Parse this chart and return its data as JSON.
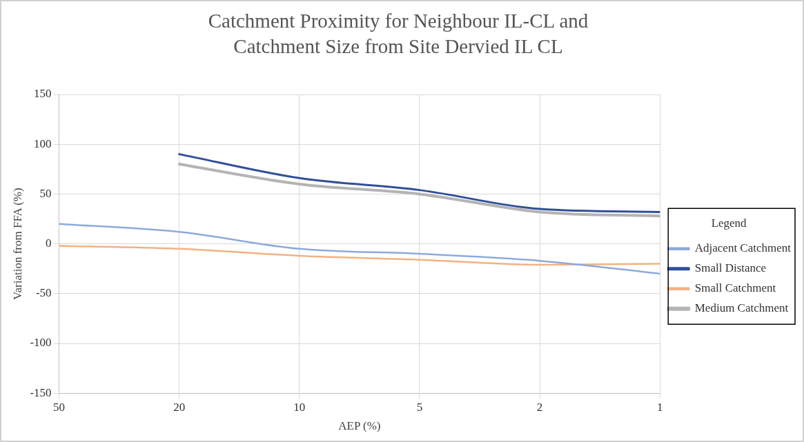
{
  "chart_data": {
    "type": "line",
    "title": "Catchment Proximity for Neighbour IL-CL and Catchment Size from Site Dervied IL CL",
    "xlabel": "AEP (%)",
    "ylabel": "Variation from FFA (%)",
    "legend_title": "Legend",
    "categories": [
      "50",
      "20",
      "10",
      "5",
      "2",
      "1"
    ],
    "series": [
      {
        "name": "Adjacent Catchment",
        "color": "#8eaadb",
        "values": [
          20,
          12,
          -5,
          -10,
          -17,
          -30
        ]
      },
      {
        "name": "Small Distance",
        "color": "#2f4f9a",
        "values": [
          null,
          90,
          66,
          54,
          35,
          32
        ]
      },
      {
        "name": "Small Catchment",
        "color": "#f4b183",
        "values": [
          -2,
          -5,
          -12,
          -16,
          -21,
          -20
        ]
      },
      {
        "name": "Medium Catchment",
        "color": "#b4b4b4",
        "values": [
          null,
          80,
          60,
          50,
          32,
          28
        ]
      }
    ],
    "ylim": [
      -150,
      150
    ],
    "yticks": [
      -150,
      -100,
      -50,
      0,
      50,
      100,
      150
    ],
    "grid": true,
    "legend": "right",
    "marker": "none",
    "line_style": "solid"
  }
}
